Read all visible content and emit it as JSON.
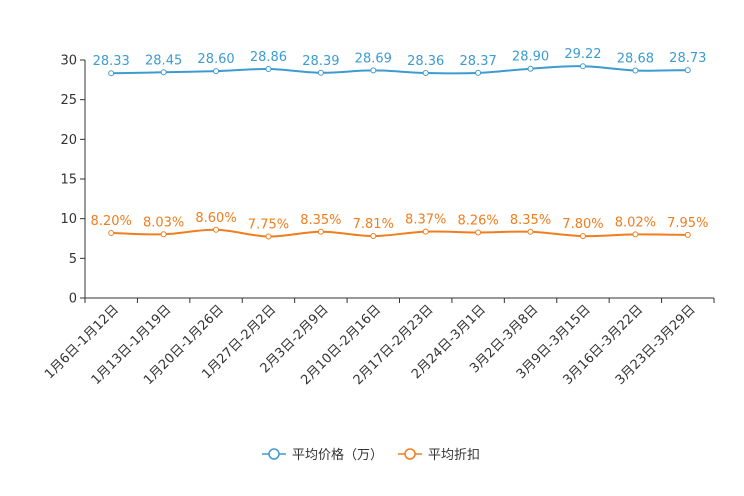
{
  "chart_data": {
    "type": "line",
    "title": "",
    "xlabel": "",
    "ylabel": "",
    "ylim": [
      0,
      30
    ],
    "yticks": [
      0,
      5,
      10,
      15,
      20,
      25,
      30
    ],
    "grid": false,
    "legend_position": "bottom-center",
    "categories": [
      "1月6日-1月12日",
      "1月13日-1月19日",
      "1月20日-1月26日",
      "1月27日-2月2日",
      "2月3日-2月9日",
      "2月10日-2月16日",
      "2月17日-2月23日",
      "2月24日-3月1日",
      "3月2日-3月8日",
      "3月9日-3月15日",
      "3月16日-3月22日",
      "3月23日-3月29日"
    ],
    "series": [
      {
        "name": "平均价格（万）",
        "color": "#3d9bd1",
        "values": [
          28.33,
          28.45,
          28.6,
          28.86,
          28.39,
          28.69,
          28.36,
          28.37,
          28.9,
          29.22,
          28.68,
          28.73
        ],
        "labels": [
          "28.33",
          "28.45",
          "28.60",
          "28.86",
          "28.39",
          "28.69",
          "28.36",
          "28.37",
          "28.90",
          "29.22",
          "28.68",
          "28.73"
        ]
      },
      {
        "name": "平均折扣",
        "color": "#f07d1e",
        "values": [
          8.2,
          8.03,
          8.6,
          7.75,
          8.35,
          7.81,
          8.37,
          8.26,
          8.35,
          7.8,
          8.02,
          7.95
        ],
        "labels": [
          "8.20%",
          "8.03%",
          "8.60%",
          "7.75%",
          "8.35%",
          "7.81%",
          "8.37%",
          "8.26%",
          "8.35%",
          "7.80%",
          "8.02%",
          "7.95%"
        ]
      }
    ]
  }
}
